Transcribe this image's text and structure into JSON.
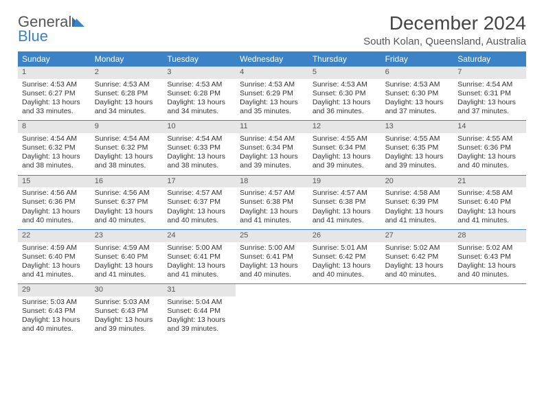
{
  "logo": {
    "general": "General",
    "blue": "Blue"
  },
  "header": {
    "title": "December 2024",
    "location": "South Kolan, Queensland, Australia"
  },
  "style": {
    "header_bg": "#3b82c7",
    "header_fg": "#ffffff",
    "daynum_bg": "#e6e6e6",
    "week_border": "#3b82c7",
    "title_fontsize": 28,
    "location_fontsize": 15,
    "dayname_fontsize": 12,
    "cell_fontsize": 10.5,
    "columns": 7
  },
  "daynames": [
    "Sunday",
    "Monday",
    "Tuesday",
    "Wednesday",
    "Thursday",
    "Friday",
    "Saturday"
  ],
  "weeks": [
    [
      {
        "num": "1",
        "sunrise": "Sunrise: 4:53 AM",
        "sunset": "Sunset: 6:27 PM",
        "daylight": "Daylight: 13 hours and 33 minutes."
      },
      {
        "num": "2",
        "sunrise": "Sunrise: 4:53 AM",
        "sunset": "Sunset: 6:28 PM",
        "daylight": "Daylight: 13 hours and 34 minutes."
      },
      {
        "num": "3",
        "sunrise": "Sunrise: 4:53 AM",
        "sunset": "Sunset: 6:28 PM",
        "daylight": "Daylight: 13 hours and 34 minutes."
      },
      {
        "num": "4",
        "sunrise": "Sunrise: 4:53 AM",
        "sunset": "Sunset: 6:29 PM",
        "daylight": "Daylight: 13 hours and 35 minutes."
      },
      {
        "num": "5",
        "sunrise": "Sunrise: 4:53 AM",
        "sunset": "Sunset: 6:30 PM",
        "daylight": "Daylight: 13 hours and 36 minutes."
      },
      {
        "num": "6",
        "sunrise": "Sunrise: 4:53 AM",
        "sunset": "Sunset: 6:30 PM",
        "daylight": "Daylight: 13 hours and 37 minutes."
      },
      {
        "num": "7",
        "sunrise": "Sunrise: 4:54 AM",
        "sunset": "Sunset: 6:31 PM",
        "daylight": "Daylight: 13 hours and 37 minutes."
      }
    ],
    [
      {
        "num": "8",
        "sunrise": "Sunrise: 4:54 AM",
        "sunset": "Sunset: 6:32 PM",
        "daylight": "Daylight: 13 hours and 38 minutes."
      },
      {
        "num": "9",
        "sunrise": "Sunrise: 4:54 AM",
        "sunset": "Sunset: 6:32 PM",
        "daylight": "Daylight: 13 hours and 38 minutes."
      },
      {
        "num": "10",
        "sunrise": "Sunrise: 4:54 AM",
        "sunset": "Sunset: 6:33 PM",
        "daylight": "Daylight: 13 hours and 38 minutes."
      },
      {
        "num": "11",
        "sunrise": "Sunrise: 4:54 AM",
        "sunset": "Sunset: 6:34 PM",
        "daylight": "Daylight: 13 hours and 39 minutes."
      },
      {
        "num": "12",
        "sunrise": "Sunrise: 4:55 AM",
        "sunset": "Sunset: 6:34 PM",
        "daylight": "Daylight: 13 hours and 39 minutes."
      },
      {
        "num": "13",
        "sunrise": "Sunrise: 4:55 AM",
        "sunset": "Sunset: 6:35 PM",
        "daylight": "Daylight: 13 hours and 39 minutes."
      },
      {
        "num": "14",
        "sunrise": "Sunrise: 4:55 AM",
        "sunset": "Sunset: 6:36 PM",
        "daylight": "Daylight: 13 hours and 40 minutes."
      }
    ],
    [
      {
        "num": "15",
        "sunrise": "Sunrise: 4:56 AM",
        "sunset": "Sunset: 6:36 PM",
        "daylight": "Daylight: 13 hours and 40 minutes."
      },
      {
        "num": "16",
        "sunrise": "Sunrise: 4:56 AM",
        "sunset": "Sunset: 6:37 PM",
        "daylight": "Daylight: 13 hours and 40 minutes."
      },
      {
        "num": "17",
        "sunrise": "Sunrise: 4:57 AM",
        "sunset": "Sunset: 6:37 PM",
        "daylight": "Daylight: 13 hours and 40 minutes."
      },
      {
        "num": "18",
        "sunrise": "Sunrise: 4:57 AM",
        "sunset": "Sunset: 6:38 PM",
        "daylight": "Daylight: 13 hours and 41 minutes."
      },
      {
        "num": "19",
        "sunrise": "Sunrise: 4:57 AM",
        "sunset": "Sunset: 6:38 PM",
        "daylight": "Daylight: 13 hours and 41 minutes."
      },
      {
        "num": "20",
        "sunrise": "Sunrise: 4:58 AM",
        "sunset": "Sunset: 6:39 PM",
        "daylight": "Daylight: 13 hours and 41 minutes."
      },
      {
        "num": "21",
        "sunrise": "Sunrise: 4:58 AM",
        "sunset": "Sunset: 6:40 PM",
        "daylight": "Daylight: 13 hours and 41 minutes."
      }
    ],
    [
      {
        "num": "22",
        "sunrise": "Sunrise: 4:59 AM",
        "sunset": "Sunset: 6:40 PM",
        "daylight": "Daylight: 13 hours and 41 minutes."
      },
      {
        "num": "23",
        "sunrise": "Sunrise: 4:59 AM",
        "sunset": "Sunset: 6:40 PM",
        "daylight": "Daylight: 13 hours and 41 minutes."
      },
      {
        "num": "24",
        "sunrise": "Sunrise: 5:00 AM",
        "sunset": "Sunset: 6:41 PM",
        "daylight": "Daylight: 13 hours and 41 minutes."
      },
      {
        "num": "25",
        "sunrise": "Sunrise: 5:00 AM",
        "sunset": "Sunset: 6:41 PM",
        "daylight": "Daylight: 13 hours and 40 minutes."
      },
      {
        "num": "26",
        "sunrise": "Sunrise: 5:01 AM",
        "sunset": "Sunset: 6:42 PM",
        "daylight": "Daylight: 13 hours and 40 minutes."
      },
      {
        "num": "27",
        "sunrise": "Sunrise: 5:02 AM",
        "sunset": "Sunset: 6:42 PM",
        "daylight": "Daylight: 13 hours and 40 minutes."
      },
      {
        "num": "28",
        "sunrise": "Sunrise: 5:02 AM",
        "sunset": "Sunset: 6:43 PM",
        "daylight": "Daylight: 13 hours and 40 minutes."
      }
    ],
    [
      {
        "num": "29",
        "sunrise": "Sunrise: 5:03 AM",
        "sunset": "Sunset: 6:43 PM",
        "daylight": "Daylight: 13 hours and 40 minutes."
      },
      {
        "num": "30",
        "sunrise": "Sunrise: 5:03 AM",
        "sunset": "Sunset: 6:43 PM",
        "daylight": "Daylight: 13 hours and 39 minutes."
      },
      {
        "num": "31",
        "sunrise": "Sunrise: 5:04 AM",
        "sunset": "Sunset: 6:44 PM",
        "daylight": "Daylight: 13 hours and 39 minutes."
      },
      null,
      null,
      null,
      null
    ]
  ]
}
